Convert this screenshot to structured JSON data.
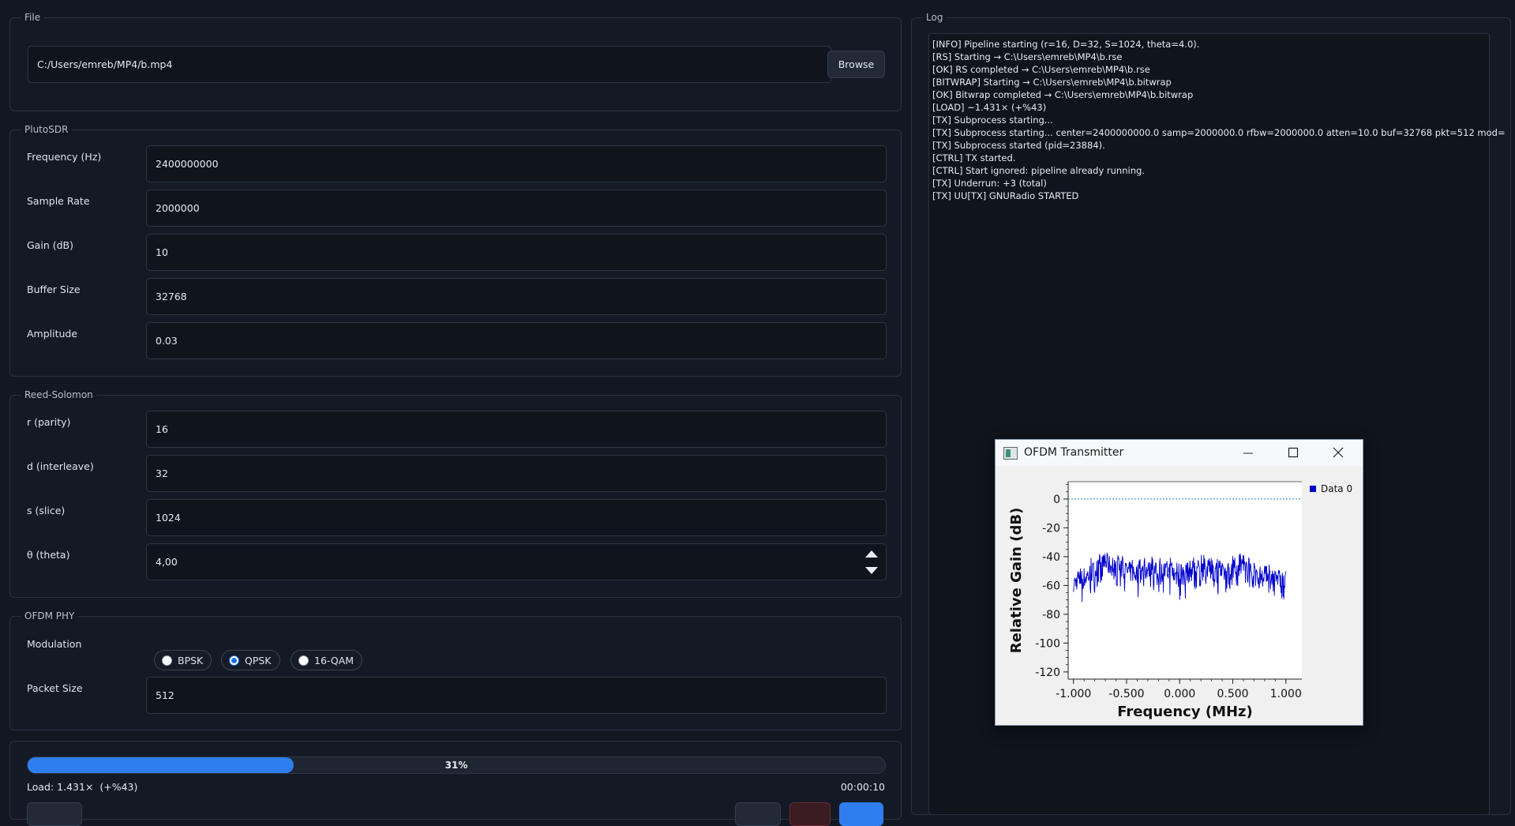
{
  "file": {
    "group_title": "File",
    "path": "C:/Users/emreb/MP4/b.mp4",
    "browse_label": "Browse"
  },
  "pluto": {
    "group_title": "PlutoSDR",
    "fields": [
      {
        "label": "Frequency (Hz)",
        "value": "2400000000"
      },
      {
        "label": "Sample Rate",
        "value": "2000000"
      },
      {
        "label": "Gain (dB)",
        "value": "10"
      },
      {
        "label": "Buffer Size",
        "value": "32768"
      },
      {
        "label": "Amplitude",
        "value": "0.03"
      }
    ]
  },
  "rs": {
    "group_title": "Reed-Solomon",
    "fields": [
      {
        "label": "r (parity)",
        "value": "16"
      },
      {
        "label": "d (interleave)",
        "value": "32"
      },
      {
        "label": "s (slice)",
        "value": "1024"
      },
      {
        "label": "θ (theta)",
        "value": "4,00"
      }
    ]
  },
  "ofdm": {
    "group_title": "OFDM PHY",
    "modulation_label": "Modulation",
    "options": [
      "BPSK",
      "QPSK",
      "16-QAM"
    ],
    "selected": "QPSK",
    "packet_label": "Packet Size",
    "packet_value": "512"
  },
  "progress": {
    "percent": 31,
    "percent_label": "31%",
    "load_text": "Load: 1.431×  (+%43)",
    "elapsed": "00:00:10"
  },
  "log": {
    "group_title": "Log",
    "lines": [
      "[INFO] Pipeline starting (r=16, D=32, S=1024, theta=4.0).",
      "[RS] Starting → C:\\Users\\emreb\\MP4\\b.rse",
      "[OK] RS completed → C:\\Users\\emreb\\MP4\\b.rse",
      "[BITWRAP] Starting → C:\\Users\\emreb\\MP4\\b.bitwrap",
      "[OK] Bitwrap completed → C:\\Users\\emreb\\MP4\\b.bitwrap",
      "[LOAD] ~1.431×  (+%43)",
      "[TX] Subprocess starting...",
      "[TX] Subprocess starting... center=2400000000.0 samp=2000000.0 rfbw=2000000.0 atten=10.0 buf=32768 pkt=512 mod=",
      "[TX] Subprocess started (pid=23884).",
      "[CTRL] TX started.",
      "[CTRL] Start ignored: pipeline already running.",
      "[TX] Underrun: +3 (total)",
      "[TX] UU[TX] GNURadio STARTED"
    ]
  },
  "ofdm_window": {
    "title": "OFDM Transmitter"
  },
  "chart_data": {
    "type": "line",
    "xlabel": "Frequency (MHz)",
    "ylabel": "Relative Gain (dB)",
    "xlim": [
      -1.05,
      1.15
    ],
    "ylim": [
      -125,
      12
    ],
    "xticks": [
      -1.0,
      -0.5,
      0.0,
      0.5,
      1.0
    ],
    "xtick_labels": [
      "-1.000",
      "-0.500",
      "0.000",
      "0.500",
      "1.000"
    ],
    "yticks": [
      0,
      -20,
      -40,
      -60,
      -80,
      -100,
      -120
    ],
    "ytick_labels": [
      "0",
      "-20",
      "-40",
      "-60",
      "-80",
      "-100",
      "-120"
    ],
    "legend": "top-right",
    "series": [
      {
        "name": "Data 0",
        "color": "#0000cc",
        "x": [
          -1.0,
          -0.9,
          -0.8,
          -0.7,
          -0.6,
          -0.5,
          -0.4,
          -0.3,
          -0.2,
          -0.1,
          0.0,
          0.1,
          0.2,
          0.3,
          0.4,
          0.5,
          0.6,
          0.7,
          0.8,
          0.9,
          1.0
        ],
        "values": [
          -58,
          -55,
          -50,
          -45,
          -48,
          -50,
          -52,
          -49,
          -51,
          -50,
          -55,
          -50,
          -48,
          -50,
          -52,
          -49,
          -47,
          -50,
          -52,
          -55,
          -58
        ],
        "upper": [
          -50,
          -45,
          -38,
          -36,
          -38,
          -40,
          -42,
          -39,
          -41,
          -40,
          -45,
          -40,
          -38,
          -40,
          -42,
          -39,
          -37,
          -40,
          -44,
          -47,
          -50
        ],
        "lower": [
          -70,
          -75,
          -65,
          -65,
          -60,
          -65,
          -70,
          -62,
          -65,
          -68,
          -77,
          -68,
          -62,
          -65,
          -70,
          -62,
          -60,
          -62,
          -65,
          -68,
          -72
        ]
      }
    ],
    "reference_line": 0
  },
  "colors": {
    "accent": "#2f7ef0",
    "background": "#121722",
    "panel": "#141a25",
    "trace": "#0000cc",
    "reference_line": "#1e8ca8"
  }
}
